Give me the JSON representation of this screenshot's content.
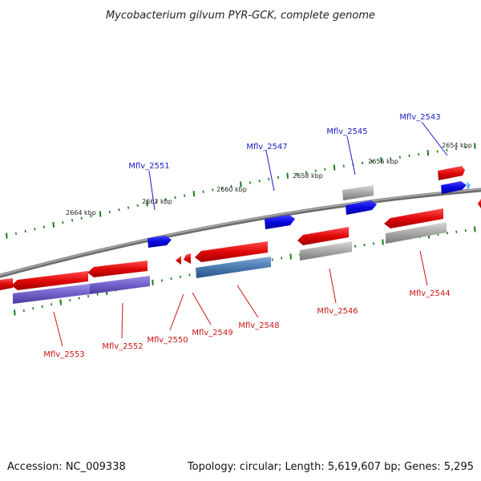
{
  "title": "Mycobacterium gilvum PYR-GCK, complete genome",
  "footer": {
    "accession": "Accession: NC_009338",
    "topology": "Topology: circular; Length: 5,619,607 bp; Genes: 5,295"
  },
  "colors": {
    "backbone": "#8a8a8a",
    "fwd_gene": "#1010e0",
    "rev_gene": "#e01010",
    "grey_gene": "#a8a8a8",
    "purple_gene": "#7060c8",
    "steel_gene": "#4a7ab0",
    "cyan_gene": "#40b0f0",
    "tick": "#1a7a1a",
    "fwd_label": "#1a1ac8",
    "rev_label": "#c81414"
  },
  "ticks": [
    {
      "label": "2664 kbp"
    },
    {
      "label": "2662 kbp"
    },
    {
      "label": "2660 kbp"
    },
    {
      "label": "2658 kbp"
    },
    {
      "label": "2656 kbp"
    },
    {
      "label": "2654 kbp"
    }
  ],
  "forward_labels": [
    {
      "id": "Mflv_2551"
    },
    {
      "id": "Mflv_2547"
    },
    {
      "id": "Mflv_2545"
    },
    {
      "id": "Mflv_2543"
    }
  ],
  "reverse_labels": [
    {
      "id": "Mflv_2553"
    },
    {
      "id": "Mflv_2552"
    },
    {
      "id": "Mflv_2550"
    },
    {
      "id": "Mflv_2549"
    },
    {
      "id": "Mflv_2548"
    },
    {
      "id": "Mflv_2546"
    },
    {
      "id": "Mflv_2544"
    }
  ]
}
